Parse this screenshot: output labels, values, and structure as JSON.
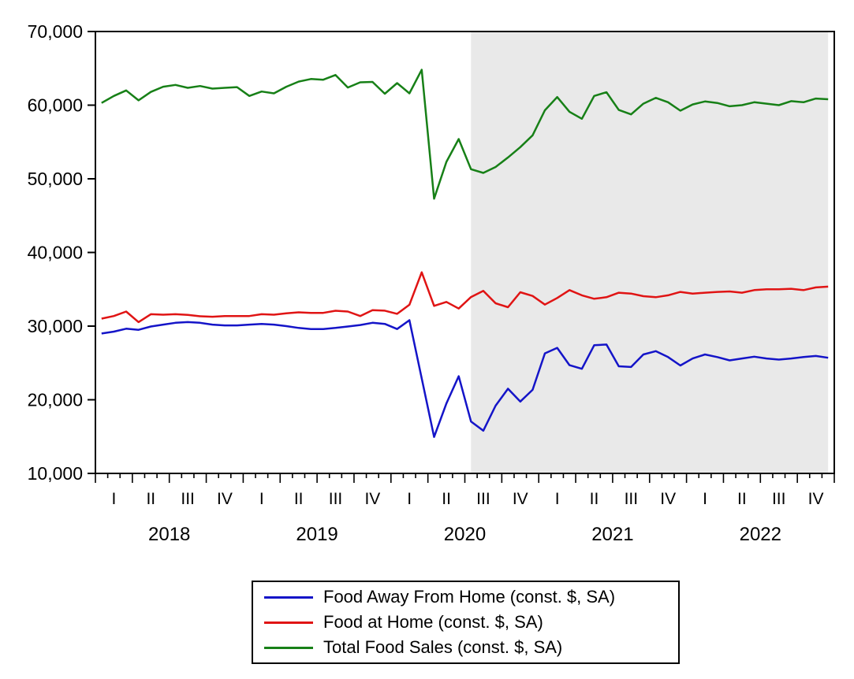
{
  "chart_data": {
    "type": "line",
    "title": "",
    "frequency": "monthly",
    "x_start": "2018M01",
    "x_end": "2022M12",
    "months_count": 60,
    "ylim": [
      10000,
      70000
    ],
    "grid": false,
    "legend_position": "bottom",
    "y_ticks": [
      "70,000",
      "60,000",
      "50,000",
      "40,000",
      "30,000",
      "20,000",
      "10,000"
    ],
    "y_tick_values": [
      70000,
      60000,
      50000,
      40000,
      30000,
      20000,
      10000
    ],
    "quarter_labels": [
      "I",
      "II",
      "III",
      "IV",
      "I",
      "II",
      "III",
      "IV",
      "I",
      "II",
      "III",
      "IV",
      "I",
      "II",
      "III",
      "IV",
      "I",
      "II",
      "III",
      "IV"
    ],
    "year_labels": [
      "2018",
      "2019",
      "2020",
      "2021",
      "2022"
    ],
    "shaded_region": {
      "from": "2020M07",
      "to": "2022M12",
      "from_month_index": 30,
      "to_month_index": 59,
      "color": "#e9e9e9"
    },
    "axis_color": "#000000",
    "series": [
      {
        "name": "Food Away From Home (const. $, SA)",
        "color": "#1414c8",
        "values": [
          29000,
          29250,
          29650,
          29500,
          29950,
          30200,
          30450,
          30550,
          30450,
          30200,
          30100,
          30100,
          30200,
          30300,
          30200,
          30000,
          29750,
          29600,
          29600,
          29750,
          29950,
          30150,
          30450,
          30300,
          29600,
          30800,
          22900,
          14950,
          19500,
          23200,
          17050,
          15800,
          19200,
          21500,
          19750,
          21350,
          26300,
          27050,
          24700,
          24200,
          27400,
          27500,
          24550,
          24450,
          26150,
          26600,
          25800,
          24650,
          25600,
          26150,
          25800,
          25350,
          25600,
          25850,
          25600,
          25450,
          25600,
          25800,
          25950,
          25700
        ]
      },
      {
        "name": "Food at Home (const. $, SA)",
        "color": "#e01414",
        "values": [
          31020,
          31370,
          31980,
          30550,
          31620,
          31550,
          31620,
          31515,
          31340,
          31270,
          31370,
          31370,
          31370,
          31620,
          31550,
          31730,
          31870,
          31800,
          31800,
          32085,
          31980,
          31370,
          32160,
          32100,
          31670,
          32900,
          37300,
          32750,
          33280,
          32390,
          33950,
          34780,
          33100,
          32570,
          34600,
          34100,
          32925,
          33820,
          34890,
          34180,
          33710,
          33920,
          34530,
          34420,
          34060,
          33920,
          34180,
          34640,
          34420,
          34530,
          34640,
          34710,
          34530,
          34890,
          35000,
          35000,
          35070,
          34890,
          35250,
          35360
        ]
      },
      {
        "name": "Total Food Sales (const. $, SA)",
        "color": "#178017",
        "values": [
          60300,
          61250,
          62000,
          60650,
          61800,
          62500,
          62750,
          62350,
          62600,
          62250,
          62350,
          62450,
          61250,
          61850,
          61600,
          62500,
          63200,
          63550,
          63450,
          64100,
          62400,
          63100,
          63150,
          61550,
          63000,
          61600,
          64800,
          47300,
          52300,
          55400,
          51300,
          50800,
          51600,
          52900,
          54300,
          55900,
          59300,
          61100,
          59100,
          58150,
          61250,
          61750,
          59350,
          58750,
          60200,
          61000,
          60400,
          59250,
          60100,
          60500,
          60300,
          59850,
          60000,
          60400,
          60200,
          60000,
          60550,
          60400,
          60900,
          60800
        ]
      }
    ]
  }
}
